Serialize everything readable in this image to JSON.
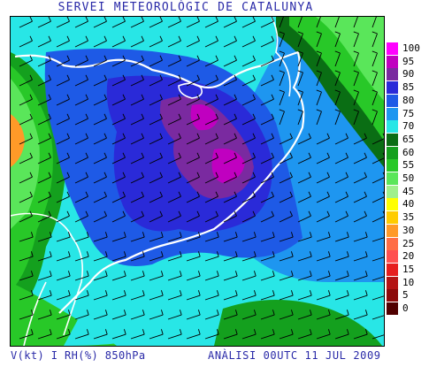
{
  "header": {
    "title": "SERVEI METEOROLÒGIC DE CATALUNYA"
  },
  "footer": {
    "variables": "V(kt) I RH(%) 850hPa",
    "analysis": "ANÀLISI 00UTC 11 JUL 2009"
  },
  "legend": {
    "unit": "RH(%)",
    "entries": [
      {
        "label": "100",
        "color": "#ff00ff"
      },
      {
        "label": "95",
        "color": "#c000c0"
      },
      {
        "label": "90",
        "color": "#7a2aa0"
      },
      {
        "label": "85",
        "color": "#2a2ad8"
      },
      {
        "label": "80",
        "color": "#1e5ae6"
      },
      {
        "label": "75",
        "color": "#1e96f0"
      },
      {
        "label": "70",
        "color": "#28e6e6"
      },
      {
        "label": "65",
        "color": "#0a6e14"
      },
      {
        "label": "60",
        "color": "#14a01e"
      },
      {
        "label": "55",
        "color": "#28c828"
      },
      {
        "label": "50",
        "color": "#5ae65a"
      },
      {
        "label": "45",
        "color": "#a0f08c"
      },
      {
        "label": "40",
        "color": "#ffff00"
      },
      {
        "label": "35",
        "color": "#ffcc00"
      },
      {
        "label": "30",
        "color": "#ff9a28"
      },
      {
        "label": "25",
        "color": "#ff6e46"
      },
      {
        "label": "20",
        "color": "#ff5050"
      },
      {
        "label": "15",
        "color": "#e61e1e"
      },
      {
        "label": "10",
        "color": "#b41414"
      },
      {
        "label": "5",
        "color": "#8c0a0a"
      },
      {
        "label": "0",
        "color": "#500000"
      }
    ]
  },
  "map": {
    "variable": "relative humidity 850hPa",
    "wind_barbs": "wind barbs in knots, mostly light westerly/southwesterly",
    "max_rh_region": "central Catalonia (90–95%)",
    "min_rh_region": "western edge (≈25–35%)"
  }
}
